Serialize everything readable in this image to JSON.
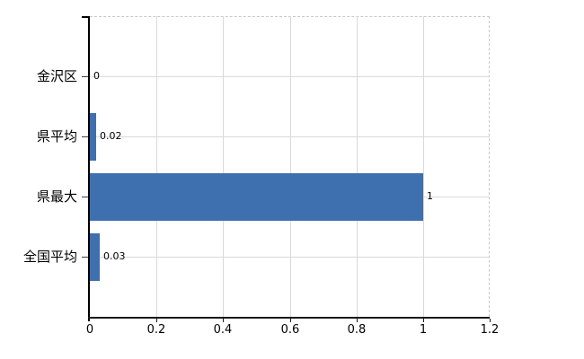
{
  "chart_data": {
    "type": "bar",
    "orientation": "horizontal",
    "title": "",
    "xlabel": "",
    "ylabel": "",
    "categories": [
      "金沢区",
      "県平均",
      "県最大",
      "全国平均"
    ],
    "values": [
      0,
      0.02,
      1,
      0.03
    ],
    "value_labels": [
      "0",
      "0.02",
      "1",
      "0.03"
    ],
    "xlim": [
      0,
      1.2
    ],
    "x_ticks": [
      0,
      0.2,
      0.4,
      0.6,
      0.8,
      1,
      1.2
    ],
    "x_tick_labels": [
      "0",
      "0.2",
      "0.4",
      "0.6",
      "0.8",
      "1",
      "1.2"
    ],
    "grid": true,
    "legend": false,
    "colors": {
      "bar": "#3E6FAE",
      "gridline": "#D9D9D9",
      "axis": "#1A1A1A",
      "tick": "#404040",
      "border_dashed": "#C8C8C8",
      "text": "#000000",
      "background": "#FFFFFF"
    }
  }
}
